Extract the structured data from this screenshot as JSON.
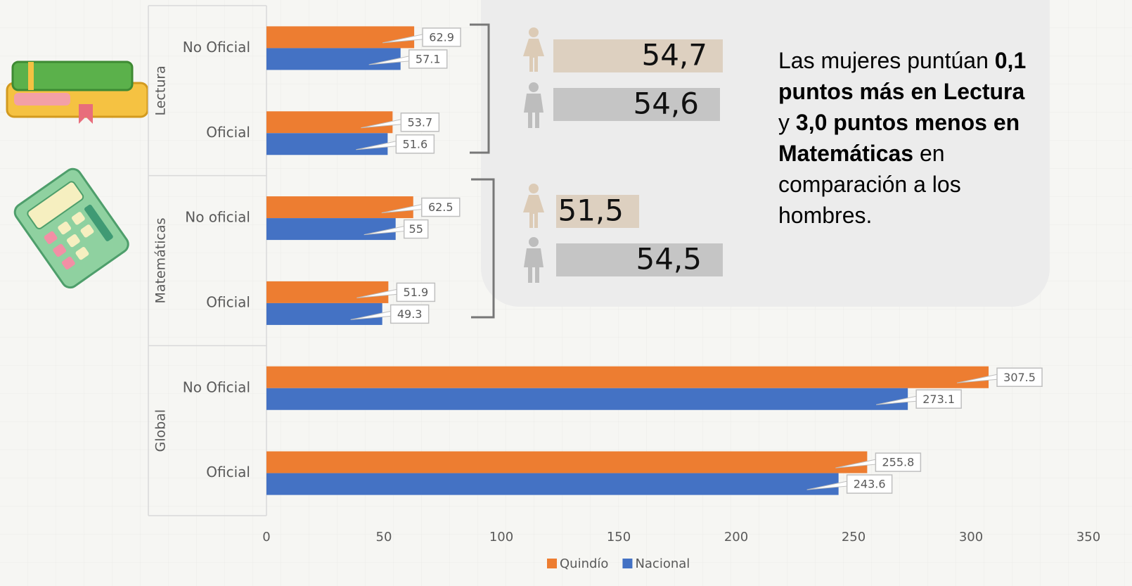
{
  "chart_data": {
    "type": "bar",
    "orientation": "horizontal",
    "groups": [
      {
        "name": "Lectura",
        "categories": [
          "No Oficial",
          "Oficial"
        ]
      },
      {
        "name": "Matemáticas",
        "categories": [
          "No oficial",
          "Oficial"
        ]
      },
      {
        "name": "Global",
        "categories": [
          "No Oficial",
          "Oficial"
        ]
      }
    ],
    "series": [
      {
        "name": "Quindío",
        "color": "#ED7D31",
        "values": [
          62.9,
          53.7,
          62.5,
          51.9,
          307.5,
          255.8
        ]
      },
      {
        "name": "Nacional",
        "color": "#4472C4",
        "values": [
          57.1,
          51.6,
          55,
          49.3,
          273.1,
          243.6
        ]
      }
    ],
    "xlim": [
      0,
      350
    ],
    "xticks": [
      0,
      50,
      100,
      150,
      200,
      250,
      300,
      350
    ],
    "legend": "bottom"
  },
  "callout": {
    "panels": [
      {
        "female": "54,7",
        "male": "54,6"
      },
      {
        "female": "51,5",
        "male": "54,5"
      }
    ],
    "text": [
      {
        "text": "Las mujeres puntúan ",
        "bold": false
      },
      {
        "text": "0,1 puntos más en Lectura",
        "bold": true
      },
      {
        "text": " y ",
        "bold": false
      },
      {
        "text": "3,0 puntos menos en Matemáticas",
        "bold": true
      },
      {
        "text": " en comparación a los hombres.",
        "bold": false
      }
    ]
  }
}
